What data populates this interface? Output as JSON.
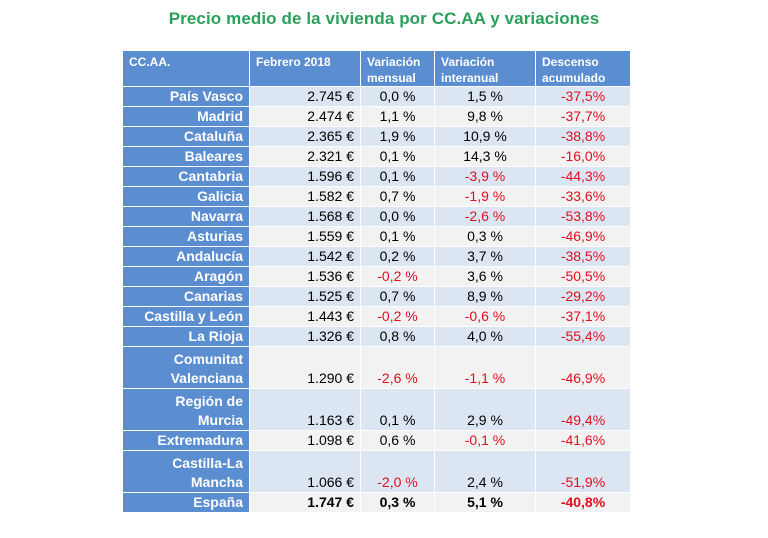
{
  "title": "Precio medio de la vivienda por CC.AA y variaciones",
  "headers": [
    "CC.AA.",
    "Febrero 2018",
    "Variación mensual",
    "Variación interanual",
    "Descenso acumulado"
  ],
  "negative_color": "#e0101e",
  "header_color": "#5b8ed0",
  "rows": [
    {
      "name": "País Vasco",
      "price": "2.745 €",
      "monthly": "0,0 %",
      "annual": "1,5 %",
      "cumulative": "-37,5%"
    },
    {
      "name": "Madrid",
      "price": "2.474 €",
      "monthly": "1,1 %",
      "annual": "9,8 %",
      "cumulative": "-37,7%"
    },
    {
      "name": "Cataluña",
      "price": "2.365 €",
      "monthly": "1,9 %",
      "annual": "10,9 %",
      "cumulative": "-38,8%"
    },
    {
      "name": "Baleares",
      "price": "2.321 €",
      "monthly": "0,1 %",
      "annual": "14,3 %",
      "cumulative": "-16,0%"
    },
    {
      "name": "Cantabria",
      "price": "1.596 €",
      "monthly": "0,1 %",
      "annual": "-3,9 %",
      "cumulative": "-44,3%"
    },
    {
      "name": "Galicia",
      "price": "1.582 €",
      "monthly": "0,7 %",
      "annual": "-1,9 %",
      "cumulative": "-33,6%"
    },
    {
      "name": "Navarra",
      "price": "1.568 €",
      "monthly": "0,0 %",
      "annual": "-2,6 %",
      "cumulative": "-53,8%"
    },
    {
      "name": "Asturias",
      "price": "1.559 €",
      "monthly": "0,1 %",
      "annual": "0,3 %",
      "cumulative": "-46,9%"
    },
    {
      "name": "Andalucía",
      "price": "1.542 €",
      "monthly": "0,2 %",
      "annual": "3,7 %",
      "cumulative": "-38,5%"
    },
    {
      "name": "Aragón",
      "price": "1.536 €",
      "monthly": "-0,2 %",
      "annual": "3,6 %",
      "cumulative": "-50,5%"
    },
    {
      "name": "Canarias",
      "price": "1.525 €",
      "monthly": "0,7 %",
      "annual": "8,9 %",
      "cumulative": "-29,2%"
    },
    {
      "name": "Castilla y León",
      "price": "1.443 €",
      "monthly": "-0,2 %",
      "annual": "-0,6 %",
      "cumulative": "-37,1%"
    },
    {
      "name": "La Rioja",
      "price": "1.326 €",
      "monthly": "0,8 %",
      "annual": "4,0 %",
      "cumulative": "-55,4%"
    },
    {
      "name": "Comunitat Valenciana",
      "price": "1.290 €",
      "monthly": "-2,6 %",
      "annual": "-1,1 %",
      "cumulative": "-46,9%"
    },
    {
      "name": "Región de Murcia",
      "price": "1.163 €",
      "monthly": "0,1 %",
      "annual": "2,9 %",
      "cumulative": "-49,4%"
    },
    {
      "name": "Extremadura",
      "price": "1.098 €",
      "monthly": "0,6 %",
      "annual": "-0,1 %",
      "cumulative": "-41,6%"
    },
    {
      "name": "Castilla-La Mancha",
      "price": "1.066 €",
      "monthly": "-2,0 %",
      "annual": "2,4 %",
      "cumulative": "-51,9%"
    },
    {
      "name": "España",
      "price": "1.747 €",
      "monthly": "0,3 %",
      "annual": "5,1 %",
      "cumulative": "-40,8%"
    }
  ]
}
